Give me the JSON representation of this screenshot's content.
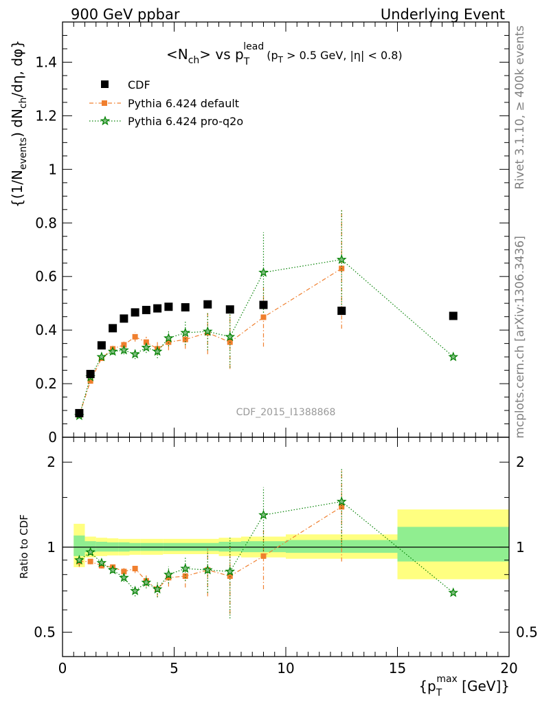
{
  "header": {
    "left": "900 GeV ppbar",
    "right": "Underlying Event"
  },
  "side_labels": {
    "rivet": "Rivet 3.1.10, ≥ 400k events",
    "mcplots": "mcplots.cern.ch [arXiv:1306.3436]"
  },
  "colors": {
    "cdf": "#000000",
    "default": "#f07f2e",
    "proq2o": "#008000",
    "band_outer": "#ffff80",
    "band_inner": "#90ee90",
    "watermark": "#999999"
  },
  "chart_data": [
    {
      "type": "scatter",
      "panel": "main",
      "title": "<N_ch> vs p_T^lead (p_T > 0.5 GeV, |η| < 0.8)",
      "title_parts": {
        "main": "<N",
        "ch": "ch",
        "vs": "> vs p",
        "T": "T",
        "lead": "lead",
        "cut": "(p",
        "cut_T": "T",
        "cut_rest": " > 0.5 GeV, |η| < 0.8)"
      },
      "ylabel": "{(1/N_events) dN_ch/dη, dφ}",
      "ylabel_parts": {
        "a": "{(1/N",
        "b": "events",
        "c": ") dN",
        "d": "ch",
        "e": "/dη, dφ}"
      },
      "watermark": "CDF_2015_I1388868",
      "ylim": [
        0,
        1.55
      ],
      "xlim": [
        0,
        20
      ],
      "yticks": [
        0,
        0.2,
        0.4,
        0.6,
        0.8,
        1,
        1.2,
        1.4
      ],
      "ytick_labels": [
        "0",
        "0.2",
        "0.4",
        "0.6",
        "0.8",
        "1",
        "1.2",
        "1.4"
      ],
      "legend_position": "top-left",
      "series": [
        {
          "name": "CDF",
          "style": "square",
          "x": [
            0.75,
            1.25,
            1.75,
            2.25,
            2.75,
            3.25,
            3.75,
            4.25,
            4.75,
            5.5,
            6.5,
            7.5,
            9.0,
            12.5,
            17.5
          ],
          "y": [
            0.09,
            0.236,
            0.343,
            0.407,
            0.443,
            0.466,
            0.475,
            0.481,
            0.487,
            0.485,
            0.496,
            0.477,
            0.494,
            0.472,
            0.453
          ]
        },
        {
          "name": "Pythia 6.424 default",
          "style": "dashdot",
          "x": [
            0.75,
            1.25,
            1.75,
            2.25,
            2.75,
            3.25,
            3.75,
            4.25,
            4.75,
            5.5,
            6.5,
            7.5,
            9.0,
            12.5
          ],
          "y": [
            0.082,
            0.21,
            0.295,
            0.33,
            0.345,
            0.375,
            0.355,
            0.33,
            0.355,
            0.365,
            0.39,
            0.355,
            0.448,
            0.63
          ],
          "err": [
            0.004,
            0.008,
            0.01,
            0.012,
            0.015,
            0.018,
            0.02,
            0.025,
            0.03,
            0.035,
            0.08,
            0.1,
            0.11,
            0.225
          ]
        },
        {
          "name": "Pythia 6.424 pro-q2o",
          "style": "dotted",
          "x": [
            0.75,
            1.25,
            1.75,
            2.25,
            2.75,
            3.25,
            3.75,
            4.25,
            4.75,
            5.5,
            6.5,
            7.5,
            9.0,
            12.5,
            17.5
          ],
          "y": [
            0.08,
            0.225,
            0.3,
            0.32,
            0.325,
            0.31,
            0.335,
            0.32,
            0.37,
            0.39,
            0.395,
            0.375,
            0.615,
            0.663,
            0.3
          ],
          "err": [
            0.004,
            0.008,
            0.01,
            0.012,
            0.015,
            0.018,
            0.02,
            0.025,
            0.03,
            0.045,
            0.07,
            0.115,
            0.15,
            0.19,
            0.0
          ]
        }
      ]
    },
    {
      "type": "scatter",
      "panel": "ratio",
      "ylabel": "Ratio to CDF",
      "xlabel": "{p_T^max [GeV]}",
      "xlabel_parts": {
        "a": "{p",
        "T": "T",
        "max": "max",
        "b": " [GeV]}"
      },
      "yscale": "log",
      "ylim": [
        0.41,
        2.45
      ],
      "xlim": [
        0,
        20
      ],
      "yticks": [
        0.5,
        1,
        2
      ],
      "ytick_labels": [
        "0.5",
        "1",
        "2"
      ],
      "xticks": [
        0,
        5,
        10,
        15,
        20
      ],
      "xtick_labels": [
        "0",
        "5",
        "10",
        "15",
        "20"
      ],
      "reference": 1,
      "bands": {
        "bins": [
          [
            0.5,
            1.0
          ],
          [
            1.0,
            1.5
          ],
          [
            1.5,
            2.0
          ],
          [
            2.0,
            2.5
          ],
          [
            2.5,
            3.0
          ],
          [
            3.0,
            3.5
          ],
          [
            3.5,
            4.0
          ],
          [
            4.0,
            4.5
          ],
          [
            4.5,
            5.0
          ],
          [
            5.0,
            6.0
          ],
          [
            6.0,
            7.0
          ],
          [
            7.0,
            8.0
          ],
          [
            8.0,
            10.0
          ],
          [
            10.0,
            15.0
          ],
          [
            15.0,
            20.0
          ]
        ],
        "outer": [
          [
            0.85,
            1.21
          ],
          [
            0.92,
            1.09
          ],
          [
            0.93,
            1.08
          ],
          [
            0.935,
            1.075
          ],
          [
            0.935,
            1.07
          ],
          [
            0.94,
            1.07
          ],
          [
            0.94,
            1.07
          ],
          [
            0.94,
            1.07
          ],
          [
            0.945,
            1.07
          ],
          [
            0.945,
            1.07
          ],
          [
            0.945,
            1.07
          ],
          [
            0.93,
            1.08
          ],
          [
            0.92,
            1.09
          ],
          [
            0.91,
            1.11
          ],
          [
            0.77,
            1.36
          ]
        ],
        "inner": [
          [
            0.93,
            1.1
          ],
          [
            0.96,
            1.05
          ],
          [
            0.965,
            1.045
          ],
          [
            0.965,
            1.04
          ],
          [
            0.965,
            1.04
          ],
          [
            0.97,
            1.035
          ],
          [
            0.97,
            1.035
          ],
          [
            0.97,
            1.035
          ],
          [
            0.97,
            1.035
          ],
          [
            0.97,
            1.035
          ],
          [
            0.97,
            1.035
          ],
          [
            0.965,
            1.045
          ],
          [
            0.96,
            1.05
          ],
          [
            0.955,
            1.06
          ],
          [
            0.89,
            1.18
          ]
        ]
      },
      "series": [
        {
          "name": "Pythia 6.424 default",
          "style": "dashdot",
          "x": [
            0.75,
            1.25,
            1.75,
            2.25,
            2.75,
            3.25,
            3.75,
            4.25,
            4.75,
            5.5,
            6.5,
            7.5,
            9.0,
            12.5
          ],
          "y": [
            0.89,
            0.89,
            0.86,
            0.85,
            0.82,
            0.84,
            0.76,
            0.71,
            0.78,
            0.79,
            0.83,
            0.79,
            0.93,
            1.39
          ],
          "err": [
            0.04,
            0.02,
            0.02,
            0.02,
            0.025,
            0.03,
            0.035,
            0.045,
            0.055,
            0.07,
            0.16,
            0.21,
            0.22,
            0.5
          ]
        },
        {
          "name": "Pythia 6.424 pro-q2o",
          "style": "dotted",
          "x": [
            0.75,
            1.25,
            1.75,
            2.25,
            2.75,
            3.25,
            3.75,
            4.25,
            4.75,
            5.5,
            6.5,
            7.5,
            9.0,
            12.5,
            17.5
          ],
          "y": [
            0.9,
            0.96,
            0.88,
            0.83,
            0.78,
            0.7,
            0.75,
            0.71,
            0.8,
            0.84,
            0.83,
            0.82,
            1.3,
            1.45,
            0.69
          ],
          "err": [
            0.04,
            0.02,
            0.02,
            0.02,
            0.025,
            0.03,
            0.035,
            0.045,
            0.055,
            0.08,
            0.14,
            0.26,
            0.33,
            0.45,
            0.0
          ]
        }
      ]
    }
  ]
}
